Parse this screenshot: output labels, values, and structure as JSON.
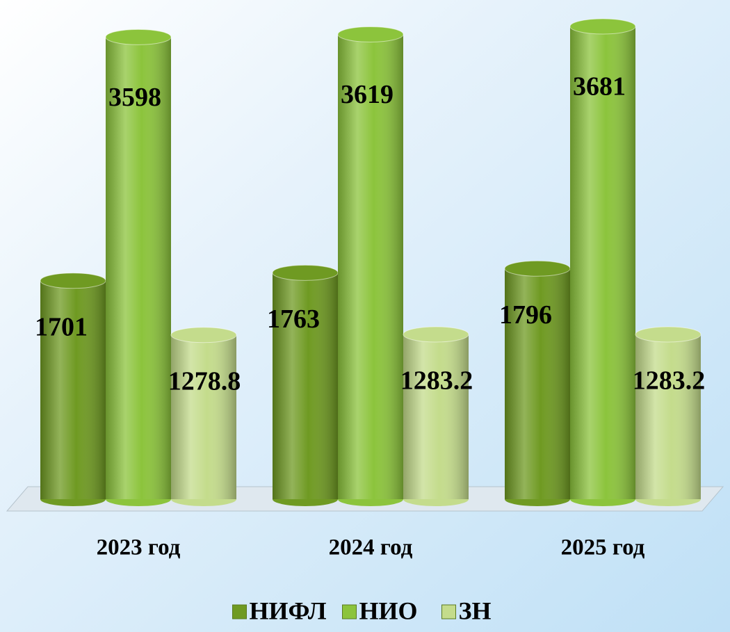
{
  "chart_data": {
    "type": "bar",
    "categories": [
      "2023 год",
      "2024 год",
      "2025 год"
    ],
    "series": [
      {
        "name": "НИФЛ",
        "color": "#6f9a22",
        "values": [
          1701,
          1763,
          1796
        ]
      },
      {
        "name": "НИО",
        "color": "#8cc43c",
        "values": [
          3598,
          3619,
          3681
        ]
      },
      {
        "name": "ЗН",
        "color": "#c4dc8c",
        "values": [
          1278.8,
          1283.2,
          1283.2
        ]
      }
    ],
    "legend": "bottom"
  }
}
